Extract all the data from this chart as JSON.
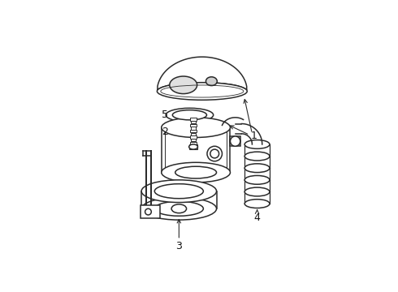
{
  "background_color": "#ffffff",
  "line_color": "#2a2a2a",
  "figsize": [
    4.9,
    3.6
  ],
  "dpi": 100,
  "lw": 1.1
}
